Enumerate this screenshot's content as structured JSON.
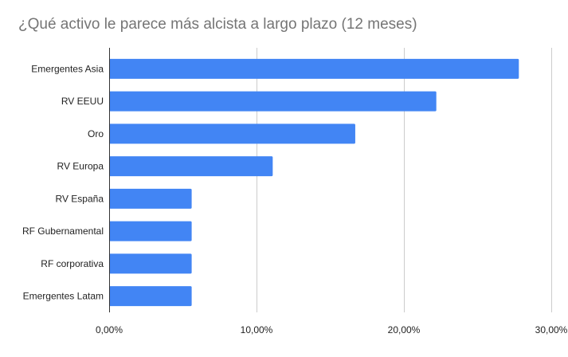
{
  "chart_data": {
    "type": "bar",
    "orientation": "horizontal",
    "title": "¿Qué activo le parece más alcista a largo plazo (12 meses)",
    "categories": [
      "Emergentes Asia",
      "RV EEUU",
      "Oro",
      "RV Europa",
      "RV España",
      "RF Gubernamental",
      "RF corporativa",
      "Emergentes Latam"
    ],
    "values": [
      27.8,
      22.2,
      16.7,
      11.1,
      5.6,
      5.6,
      5.6,
      5.6
    ],
    "xlim": [
      0,
      30
    ],
    "xticks": [
      {
        "value": 0,
        "label": "0,00%"
      },
      {
        "value": 10,
        "label": "10,00%"
      },
      {
        "value": 20,
        "label": "20,00%"
      },
      {
        "value": 30,
        "label": "30,00%"
      }
    ],
    "grid": true,
    "legend": "none",
    "bar_color": "#4285f4",
    "grid_color": "#cccccc",
    "axis_color": "#333333",
    "title_color": "#757575",
    "label_color": "#222222"
  }
}
